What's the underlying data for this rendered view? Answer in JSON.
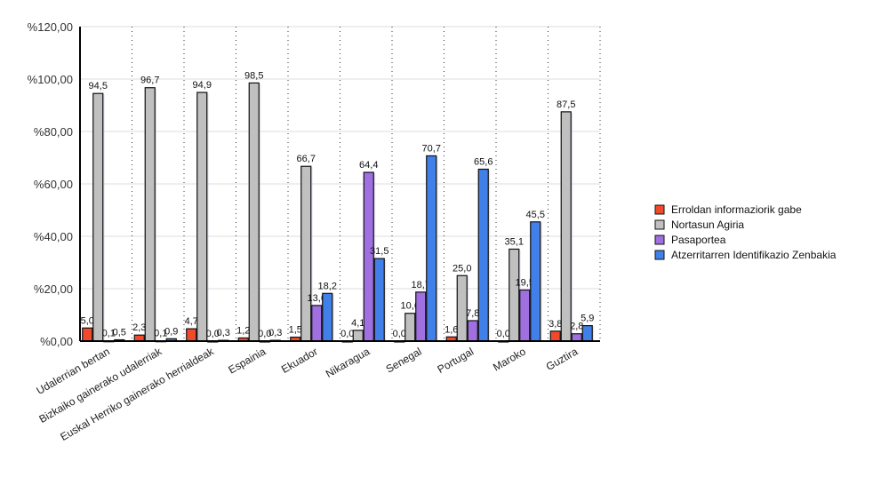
{
  "chart_data": {
    "type": "bar",
    "categories": [
      "Udalerrian bertan",
      "Bizkaiko gainerako udalerriak",
      "Euskal Herriko gainerako herrialdeak",
      "Espainia",
      "Ekuador",
      "Nikaragua",
      "Senegal",
      "Portugal",
      "Maroko",
      "Guztira"
    ],
    "series": [
      {
        "name": "Erroldan informaziorik gabe",
        "color": "#f04a2c",
        "values": [
          5.0,
          2.3,
          4.7,
          1.2,
          1.5,
          0.0,
          0.0,
          1.6,
          0.0,
          3.8
        ]
      },
      {
        "name": "Nortasun Agiria",
        "color": "#c0c0c0",
        "values": [
          94.5,
          96.7,
          94.9,
          98.5,
          66.7,
          4.1,
          10.6,
          25.0,
          35.1,
          87.5
        ]
      },
      {
        "name": "Pasaportea",
        "color": "#a070e0",
        "values": [
          0.1,
          0.1,
          0.0,
          0.0,
          13.6,
          64.4,
          18.7,
          7.8,
          19.5,
          2.8
        ]
      },
      {
        "name": "Atzerritarren Identifikazio Zenbakia",
        "color": "#4080e8",
        "values": [
          0.5,
          0.9,
          0.3,
          0.3,
          18.2,
          31.5,
          70.7,
          65.6,
          45.5,
          5.9
        ]
      }
    ],
    "yticks": [
      "%0,00",
      "%20,00",
      "%40,00",
      "%60,00",
      "%80,00",
      "%100,00",
      "%120,00"
    ],
    "ylim": [
      0,
      120
    ],
    "grid": true,
    "legend": "right"
  }
}
